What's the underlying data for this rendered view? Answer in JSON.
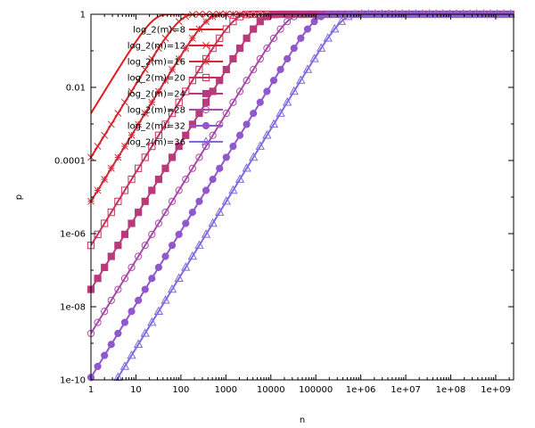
{
  "chart_data": {
    "type": "line",
    "title": "",
    "xlabel": "n",
    "ylabel": "p",
    "xscale": "log",
    "yscale": "log",
    "xlim": [
      1,
      2500000000
    ],
    "ylim": [
      1e-10,
      1
    ],
    "grid": false,
    "legend_position": "top-left",
    "x_ticks": [
      {
        "value": 1,
        "label": "1"
      },
      {
        "value": 10,
        "label": "10"
      },
      {
        "value": 100,
        "label": "100"
      },
      {
        "value": 1000,
        "label": "1000"
      },
      {
        "value": 10000,
        "label": "10000"
      },
      {
        "value": 100000,
        "label": "100000"
      },
      {
        "value": 1000000,
        "label": "1e+06"
      },
      {
        "value": 10000000,
        "label": "1e+07"
      },
      {
        "value": 100000000,
        "label": "1e+08"
      },
      {
        "value": 1000000000,
        "label": "1e+09"
      }
    ],
    "y_ticks": [
      {
        "value": 1e-10,
        "label": "1e-10"
      },
      {
        "value": 1e-08,
        "label": "1e-08"
      },
      {
        "value": 1e-06,
        "label": "1e-06"
      },
      {
        "value": 0.0001,
        "label": "0.0001"
      },
      {
        "value": 0.01,
        "label": "0.01"
      },
      {
        "value": 1,
        "label": "1"
      }
    ],
    "series": [
      {
        "name": "log_2(m)=8",
        "log2m": 8,
        "color": "#e31a1c",
        "marker": "none"
      },
      {
        "name": "log_2(m)=12",
        "log2m": 12,
        "color": "#d9242c",
        "marker": "x"
      },
      {
        "name": "log_2(m)=16",
        "log2m": 16,
        "color": "#d02a3a",
        "marker": "star"
      },
      {
        "name": "log_2(m)=20",
        "log2m": 20,
        "color": "#c7315a",
        "marker": "square-open"
      },
      {
        "name": "log_2(m)=24",
        "log2m": 24,
        "color": "#b83a7a",
        "marker": "square-filled"
      },
      {
        "name": "log_2(m)=28",
        "log2m": 28,
        "color": "#a848a8",
        "marker": "circle-open"
      },
      {
        "name": "log_2(m)=32",
        "log2m": 32,
        "color": "#9158cc",
        "marker": "circle-filled"
      },
      {
        "name": "log_2(m)=36",
        "log2m": 36,
        "color": "#8069e0",
        "marker": "triangle-open"
      }
    ]
  }
}
